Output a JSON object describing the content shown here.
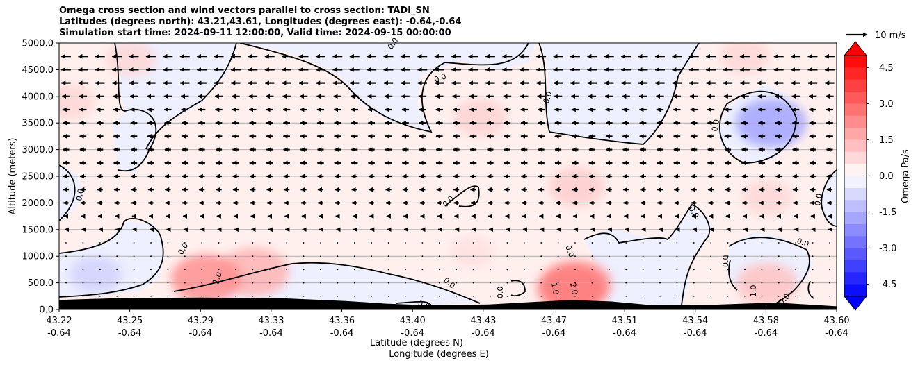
{
  "chart_data": {
    "type": "heatmap",
    "title_lines": [
      "Omega cross section and wind vectors parallel to cross section: TADI_SN",
      "Latitudes (degrees north): 43.21,43.61, Longitudes (degrees east): -0.64,-0.64",
      "Simulation start time: 2024-09-11 12:00:00, Valid time: 2024-09-15 00:00:00"
    ],
    "xlabel_line1": "Latitude (degrees N)",
    "xlabel_line2": "Longitude (degrees E)",
    "ylabel": "Altitude (meters)",
    "x_tick_lat": [
      "43.22",
      "43.25",
      "43.29",
      "43.33",
      "43.36",
      "43.40",
      "43.43",
      "43.47",
      "43.51",
      "43.54",
      "43.58",
      "43.60"
    ],
    "x_tick_lon": [
      "-0.64",
      "-0.64",
      "-0.64",
      "-0.64",
      "-0.64",
      "-0.64",
      "-0.64",
      "-0.64",
      "-0.64",
      "-0.64",
      "-0.64",
      "-0.64"
    ],
    "y_ticks": [
      "0.0",
      "500.0",
      "1000.0",
      "1500.0",
      "2000.0",
      "2500.0",
      "3000.0",
      "3500.0",
      "4000.0",
      "4500.0",
      "5000.0"
    ],
    "ylim": [
      0,
      5000
    ],
    "grid": "horizontal",
    "quiver_key": {
      "label": "10 m/s",
      "speed": 10
    },
    "colorbar": {
      "label": "Omega Pa/s",
      "range": [
        -5,
        5
      ],
      "ticks": [
        "-4.5",
        "-3.0",
        "-1.5",
        "0.0",
        "1.5",
        "3.0",
        "4.5"
      ],
      "extend": "both",
      "colormap": "bwr"
    },
    "contour_labels": [
      "0.0",
      "0.0",
      "0.0",
      "0.0",
      "0.0",
      "0.0",
      "0.0",
      "0.0",
      "0.0",
      "0.0",
      "0.0",
      "0.0",
      "0.0",
      "0.0",
      "0.0",
      "0.0",
      "1.0",
      "1.0",
      "1.0",
      "2.0"
    ],
    "omega_regions": [
      {
        "x": 43.225,
        "alt": 3900,
        "value": 0.8
      },
      {
        "x": 43.255,
        "alt": 4700,
        "value": 0.8
      },
      {
        "x": 43.315,
        "alt": 700,
        "value": 1.5
      },
      {
        "x": 43.292,
        "alt": 580,
        "value": 2.2
      },
      {
        "x": 43.238,
        "alt": 650,
        "value": -0.9
      },
      {
        "x": 43.422,
        "alt": 1080,
        "value": 0.6
      },
      {
        "x": 43.426,
        "alt": 3600,
        "value": 0.9
      },
      {
        "x": 43.473,
        "alt": 2300,
        "value": 1.0
      },
      {
        "x": 43.473,
        "alt": 480,
        "value": 1.8
      },
      {
        "x": 43.471,
        "alt": 400,
        "value": 2.6
      },
      {
        "x": 43.566,
        "alt": 480,
        "value": 1.2
      },
      {
        "x": 43.566,
        "alt": 2100,
        "value": 0.8
      },
      {
        "x": 43.555,
        "alt": 4750,
        "value": 0.8
      },
      {
        "x": 43.568,
        "alt": 3500,
        "value": -1.8
      }
    ],
    "wind_u_by_level": [
      {
        "alt": 4750,
        "u": -4.6
      },
      {
        "alt": 4500,
        "u": -4.6
      },
      {
        "alt": 4250,
        "u": -4.4
      },
      {
        "alt": 4000,
        "u": -3.8
      },
      {
        "alt": 3750,
        "u": -3.4
      },
      {
        "alt": 3500,
        "u": -3.2
      },
      {
        "alt": 3250,
        "u": -3.2
      },
      {
        "alt": 3000,
        "u": -3.0
      },
      {
        "alt": 2750,
        "u": -3.1
      },
      {
        "alt": 2500,
        "u": -2.9
      },
      {
        "alt": 2250,
        "u": -2.7
      },
      {
        "alt": 2000,
        "u": -2.4
      },
      {
        "alt": 1750,
        "u": -1.8
      },
      {
        "alt": 1500,
        "u": -1.2
      },
      {
        "alt": 1250,
        "u": -0.7
      },
      {
        "alt": 1000,
        "u": -0.4
      },
      {
        "alt": 750,
        "u": -0.2
      },
      {
        "alt": 500,
        "u": -0.1
      },
      {
        "alt": 250,
        "u": -0.05
      }
    ],
    "terrain": [
      {
        "x": 43.22,
        "alt": 180
      },
      {
        "x": 43.25,
        "alt": 215
      },
      {
        "x": 43.29,
        "alt": 225
      },
      {
        "x": 43.33,
        "alt": 210
      },
      {
        "x": 43.36,
        "alt": 160
      },
      {
        "x": 43.38,
        "alt": 110
      },
      {
        "x": 43.4,
        "alt": 80
      },
      {
        "x": 43.43,
        "alt": 95
      },
      {
        "x": 43.47,
        "alt": 180
      },
      {
        "x": 43.49,
        "alt": 150
      },
      {
        "x": 43.51,
        "alt": 80
      },
      {
        "x": 43.54,
        "alt": 90
      },
      {
        "x": 43.57,
        "alt": 130
      },
      {
        "x": 43.6,
        "alt": 60
      }
    ]
  }
}
